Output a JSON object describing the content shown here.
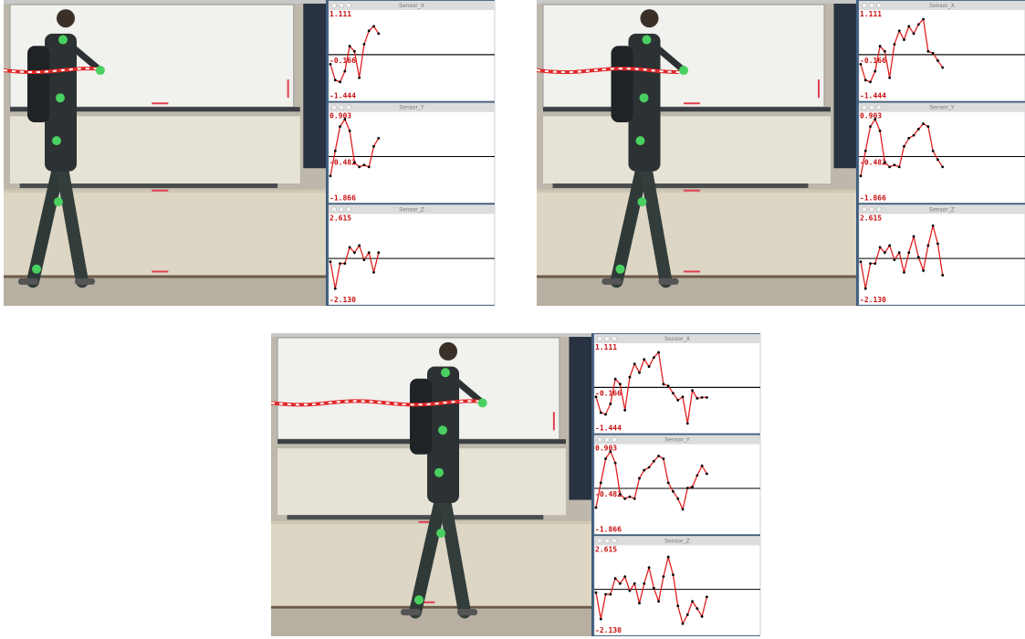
{
  "panels": [
    {
      "sensors": [
        {
          "title": "Sensor_X",
          "ylim": [
            -1.444,
            1.111
          ],
          "yticks": [
            1.111,
            -0.166,
            -1.444
          ],
          "values": [
            -0.48,
            -1.0,
            -1.06,
            -0.71,
            0.11,
            -0.06,
            -0.92,
            0.17,
            0.61,
            0.76,
            0.52
          ]
        },
        {
          "title": "Sensor_Y",
          "ylim": [
            -1.866,
            0.903
          ],
          "yticks": [
            0.903,
            -0.482,
            -1.866
          ],
          "values": [
            -1.17,
            -0.28,
            0.58,
            0.84,
            0.43,
            -0.69,
            -0.85,
            -0.78,
            -0.85,
            -0.12,
            0.17
          ]
        },
        {
          "title": "Sensor_Z",
          "ylim": [
            -2.13,
            2.615
          ],
          "yticks": [
            2.615,
            {
              "value": -2.13,
              "label": "-2.130"
            }
          ],
          "values": [
            0.05,
            -1.58,
            -0.06,
            -0.06,
            0.92,
            0.6,
            1.03,
            0.16,
            0.6,
            -0.6,
            0.6
          ]
        }
      ]
    },
    {
      "sensors": [
        {
          "title": "Sensor_X",
          "ylim": [
            -1.444,
            1.111
          ],
          "yticks": [
            1.111,
            -0.166,
            -1.444
          ],
          "values": [
            -0.48,
            -1.0,
            -1.06,
            -0.71,
            0.11,
            -0.06,
            -0.92,
            0.17,
            0.61,
            0.32,
            0.76,
            0.52,
            0.82,
            0.99,
            -0.06,
            -0.12,
            -0.36,
            -0.59
          ]
        },
        {
          "title": "Sensor_Y",
          "ylim": [
            -1.866,
            0.903
          ],
          "yticks": [
            0.903,
            -0.482,
            -1.866
          ],
          "values": [
            -1.17,
            -0.28,
            0.58,
            0.84,
            0.43,
            -0.69,
            -0.85,
            -0.78,
            -0.85,
            -0.12,
            0.17,
            0.27,
            0.49,
            0.68,
            0.58,
            -0.28,
            -0.59,
            -0.85
          ]
        },
        {
          "title": "Sensor_Z",
          "ylim": [
            -2.13,
            2.615
          ],
          "yticks": [
            2.615,
            {
              "value": -2.13,
              "label": "-2.130"
            }
          ],
          "values": [
            0.05,
            -1.58,
            -0.06,
            -0.06,
            0.92,
            0.6,
            1.03,
            0.16,
            0.6,
            -0.6,
            0.6,
            1.58,
            0.32,
            -0.49,
            1.03,
            2.23,
            1.14,
            -0.77
          ]
        }
      ]
    },
    {
      "sensors": [
        {
          "title": "Sensor_X",
          "ylim": [
            -1.444,
            1.111
          ],
          "yticks": [
            1.111,
            -0.166,
            -1.444
          ],
          "values": [
            -0.48,
            -1.0,
            -1.06,
            -0.71,
            0.11,
            -0.06,
            -0.92,
            0.17,
            0.61,
            0.32,
            0.76,
            0.52,
            0.82,
            0.99,
            -0.06,
            -0.12,
            -0.36,
            -0.59,
            -0.48,
            -1.36,
            -0.27,
            -0.53,
            -0.5,
            -0.5
          ]
        },
        {
          "title": "Sensor_Y",
          "ylim": [
            -1.866,
            0.903
          ],
          "yticks": [
            0.903,
            -0.482,
            -1.866
          ],
          "values": [
            -1.17,
            -0.28,
            0.58,
            0.84,
            0.43,
            -0.69,
            -0.85,
            -0.78,
            -0.85,
            -0.12,
            0.17,
            0.27,
            0.49,
            0.68,
            0.58,
            -0.28,
            -0.59,
            -0.85,
            -1.23,
            -0.47,
            -0.43,
            -0.02,
            0.33,
            0.04
          ]
        },
        {
          "title": "Sensor_Z",
          "ylim": [
            -2.13,
            2.615
          ],
          "yticks": [
            2.615,
            {
              "value": -2.13,
              "label": "-2.130"
            }
          ],
          "values": [
            0.05,
            -1.58,
            -0.06,
            -0.06,
            0.92,
            0.6,
            1.03,
            0.16,
            0.6,
            -0.6,
            0.6,
            1.58,
            0.32,
            -0.49,
            1.03,
            2.23,
            1.14,
            -0.77,
            -1.86,
            -1.31,
            -0.49,
            -0.93,
            -1.42,
            -0.22
          ]
        }
      ]
    }
  ]
}
